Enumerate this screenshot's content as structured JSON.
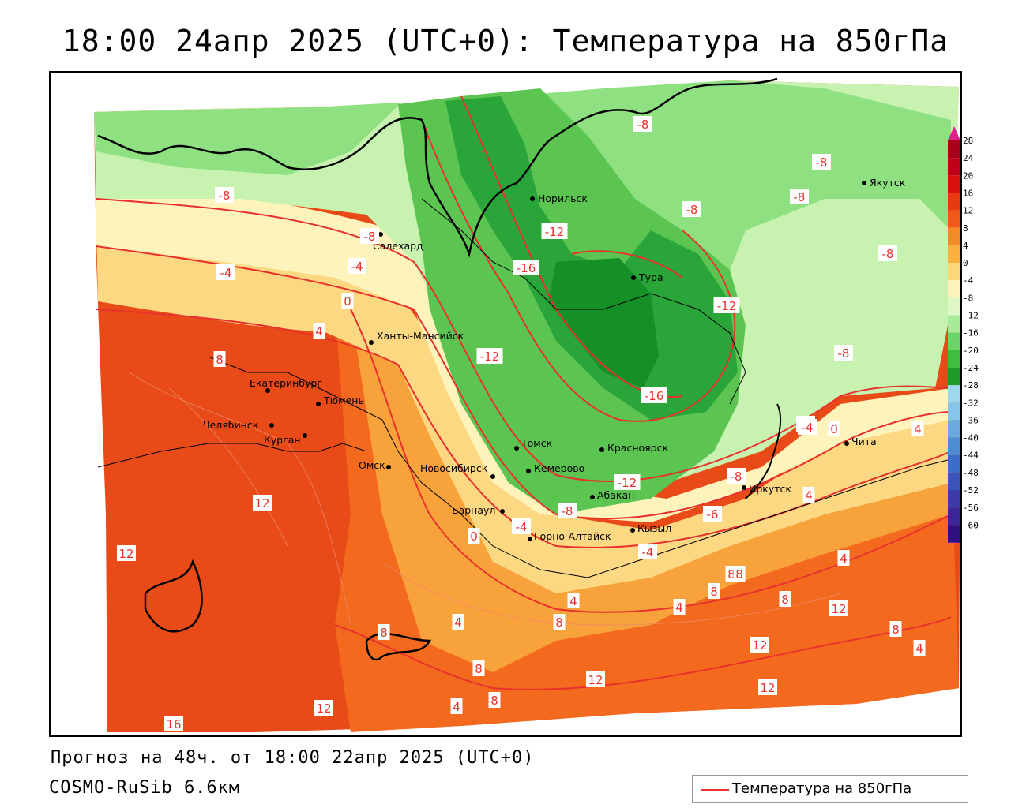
{
  "title": "18:00 24апр 2025 (UTC+0): Температура на 850гПа",
  "footer": {
    "forecast": "Прогноз на 48ч. от 18:00 22апр 2025 (UTC+0)",
    "model": "COSMO-RuSib 6.6км"
  },
  "legend": {
    "label": "Температура на 850гПа",
    "line_color": "#e8312c"
  },
  "colorbar": {
    "ticks": [
      "28",
      "24",
      "20",
      "16",
      "12",
      "8",
      "4",
      "0",
      "-4",
      "-8",
      "-12",
      "-16",
      "-20",
      "-24",
      "-28",
      "-32",
      "-36",
      "-40",
      "-44",
      "-48",
      "-52",
      "-56",
      "-60"
    ],
    "colors": [
      "#a8001c",
      "#c0001a",
      "#d8100f",
      "#e83a10",
      "#f05a18",
      "#f58a28",
      "#fcb040",
      "#fdd87a",
      "#fdf3b8",
      "#dff7c6",
      "#a6ea9a",
      "#6cd468",
      "#3fbd3f",
      "#1f9a2a",
      "#9fd7ef",
      "#86c4ea",
      "#6aa9df",
      "#4e8dd4",
      "#3a6ec9",
      "#3a53b8",
      "#3c3aa8",
      "#3b2896",
      "#2d127f"
    ],
    "top_arrow_color": "#e0208a",
    "bottom_arrow_color": "#8a28c8"
  },
  "cities": [
    {
      "name": "Норильск"
    },
    {
      "name": "Якутск"
    },
    {
      "name": "Салехард"
    },
    {
      "name": "Тура"
    },
    {
      "name": "Ханты-Мансийск"
    },
    {
      "name": "Екатеринбург"
    },
    {
      "name": "Тюмень"
    },
    {
      "name": "Челябинск"
    },
    {
      "name": "Курган"
    },
    {
      "name": "Омск"
    },
    {
      "name": "Новосибирск"
    },
    {
      "name": "Томск"
    },
    {
      "name": "Кемерово"
    },
    {
      "name": "Красноярск"
    },
    {
      "name": "Барнаул"
    },
    {
      "name": "Абакан"
    },
    {
      "name": "Горно-Алтайск"
    },
    {
      "name": "Кызыл"
    },
    {
      "name": "Иркутск"
    },
    {
      "name": "Чита"
    }
  ],
  "isotherm_labels": [
    "-8",
    "-8",
    "-8",
    "-8",
    "-8",
    "-8",
    "-8",
    "-8",
    "-12",
    "-16",
    "-12",
    "-12",
    "-16",
    "-12",
    "-8",
    "-4",
    "-4",
    "0",
    "4",
    "4",
    "0",
    "-4",
    "8",
    "12",
    "12",
    "16",
    "12",
    "8",
    "4",
    "8",
    "0",
    "-4",
    "-8",
    "-4",
    "8",
    "12",
    "8",
    "4",
    "4",
    "8",
    "8",
    "8",
    "4",
    "12",
    "12",
    "12",
    "8",
    "4",
    "4",
    "8",
    "4",
    "-4",
    "-8",
    "-6"
  ]
}
